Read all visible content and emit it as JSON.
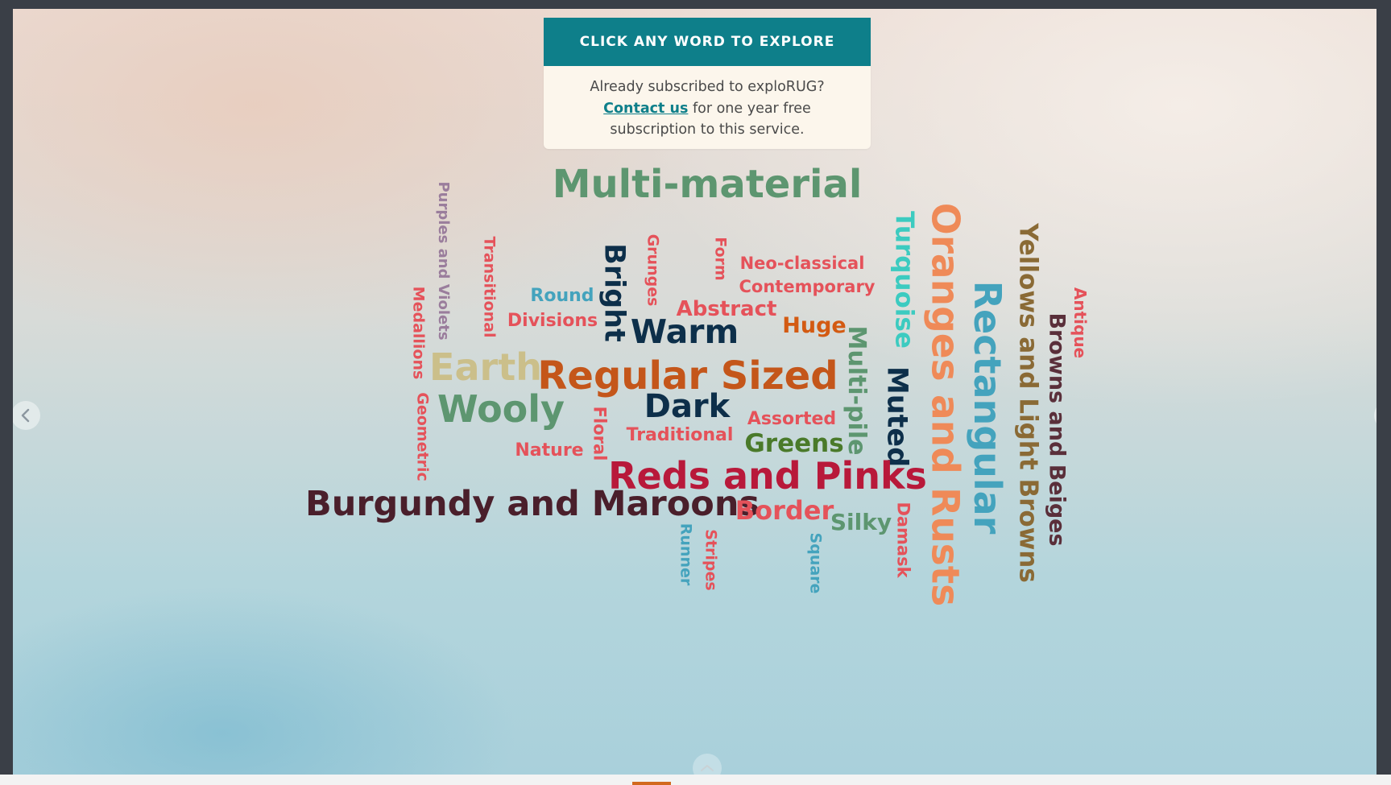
{
  "banner": {
    "cta": "CLICK ANY WORD TO EXPLORE",
    "line1": "Already subscribed to exploRUG?",
    "contact_link": "Contact us",
    "line2_rest": " for one year free",
    "line3": "subscription to this service."
  },
  "colors": {
    "teal": "#0e7f8a",
    "coral": "#e5525a",
    "sage": "#5d9670",
    "navy": "#0d2f4a",
    "orange": "#d35a12",
    "peach": "#ef8a58",
    "sky": "#44a3bd",
    "tan": "#cbbf8a",
    "mauve": "#9a7d9c",
    "olive": "#8a6a35",
    "crimson": "#b8193a",
    "burgundy": "#4a1f2b",
    "turquoise": "#3ccbc0",
    "rust": "#c4561a",
    "green": "#4a7a2a"
  },
  "icons": {
    "prev": "chevron-left-icon",
    "next": "chevron-right-icon",
    "up": "chevron-up-icon"
  },
  "words": [
    {
      "id": "multi-material",
      "text": "Multi-material",
      "color": "#5d9670"
    },
    {
      "id": "purples-and-violets",
      "text": "Purples and Violets",
      "color": "#9a7d9c"
    },
    {
      "id": "transitional",
      "text": "Transitional",
      "color": "#e5525a"
    },
    {
      "id": "grunges",
      "text": "Grunges",
      "color": "#e5525a"
    },
    {
      "id": "form",
      "text": "Form",
      "color": "#e5525a"
    },
    {
      "id": "neo-classical",
      "text": "Neo-classical",
      "color": "#e5525a"
    },
    {
      "id": "contemporary",
      "text": "Contemporary",
      "color": "#e5525a"
    },
    {
      "id": "turquoise",
      "text": "Turquoise",
      "color": "#3ccbc0"
    },
    {
      "id": "oranges-and-rusts",
      "text": "Oranges and Rusts",
      "color": "#ef8a58"
    },
    {
      "id": "rectangular",
      "text": "Rectangular",
      "color": "#44a3bd"
    },
    {
      "id": "yellows-and-light-browns",
      "text": "Yellows and Light Browns",
      "color": "#8a6a35"
    },
    {
      "id": "browns-and-beiges",
      "text": "Browns and Beiges",
      "color": "#5a2f3a"
    },
    {
      "id": "antique",
      "text": "Antique",
      "color": "#e5525a"
    },
    {
      "id": "round",
      "text": "Round",
      "color": "#44a3bd"
    },
    {
      "id": "bright",
      "text": "Bright",
      "color": "#0d2f4a"
    },
    {
      "id": "abstract",
      "text": "Abstract",
      "color": "#e5525a"
    },
    {
      "id": "medallions",
      "text": "Medallions",
      "color": "#e5525a"
    },
    {
      "id": "divisions",
      "text": "Divisions",
      "color": "#e5525a"
    },
    {
      "id": "warm",
      "text": "Warm",
      "color": "#0d2f4a"
    },
    {
      "id": "huge",
      "text": "Huge",
      "color": "#d35a12"
    },
    {
      "id": "multi-pile",
      "text": "Multi-pile",
      "color": "#5d9670"
    },
    {
      "id": "earth",
      "text": "Earth",
      "color": "#cbbf8a"
    },
    {
      "id": "regular-sized",
      "text": "Regular Sized",
      "color": "#c4561a"
    },
    {
      "id": "muted",
      "text": "Muted",
      "color": "#0d2f4a"
    },
    {
      "id": "geometric",
      "text": "Geometric",
      "color": "#e5525a"
    },
    {
      "id": "wooly",
      "text": "Wooly",
      "color": "#5d9670"
    },
    {
      "id": "dark",
      "text": "Dark",
      "color": "#0d2f4a"
    },
    {
      "id": "floral",
      "text": "Floral",
      "color": "#e5525a"
    },
    {
      "id": "assorted",
      "text": "Assorted",
      "color": "#e5525a"
    },
    {
      "id": "traditional",
      "text": "Traditional",
      "color": "#e5525a"
    },
    {
      "id": "greens",
      "text": "Greens",
      "color": "#4a7a2a"
    },
    {
      "id": "nature",
      "text": "Nature",
      "color": "#e5525a"
    },
    {
      "id": "reds-and-pinks",
      "text": "Reds and Pinks",
      "color": "#b8193a"
    },
    {
      "id": "burgundy-and-maroons",
      "text": "Burgundy and Maroons",
      "color": "#4a1f2b"
    },
    {
      "id": "border",
      "text": "Border",
      "color": "#e5525a"
    },
    {
      "id": "silky",
      "text": "Silky",
      "color": "#5d9670"
    },
    {
      "id": "damask",
      "text": "Damask",
      "color": "#e5525a"
    },
    {
      "id": "runner",
      "text": "Runner",
      "color": "#44a3bd"
    },
    {
      "id": "stripes",
      "text": "Stripes",
      "color": "#e5525a"
    },
    {
      "id": "square",
      "text": "Square",
      "color": "#44a3bd"
    }
  ]
}
